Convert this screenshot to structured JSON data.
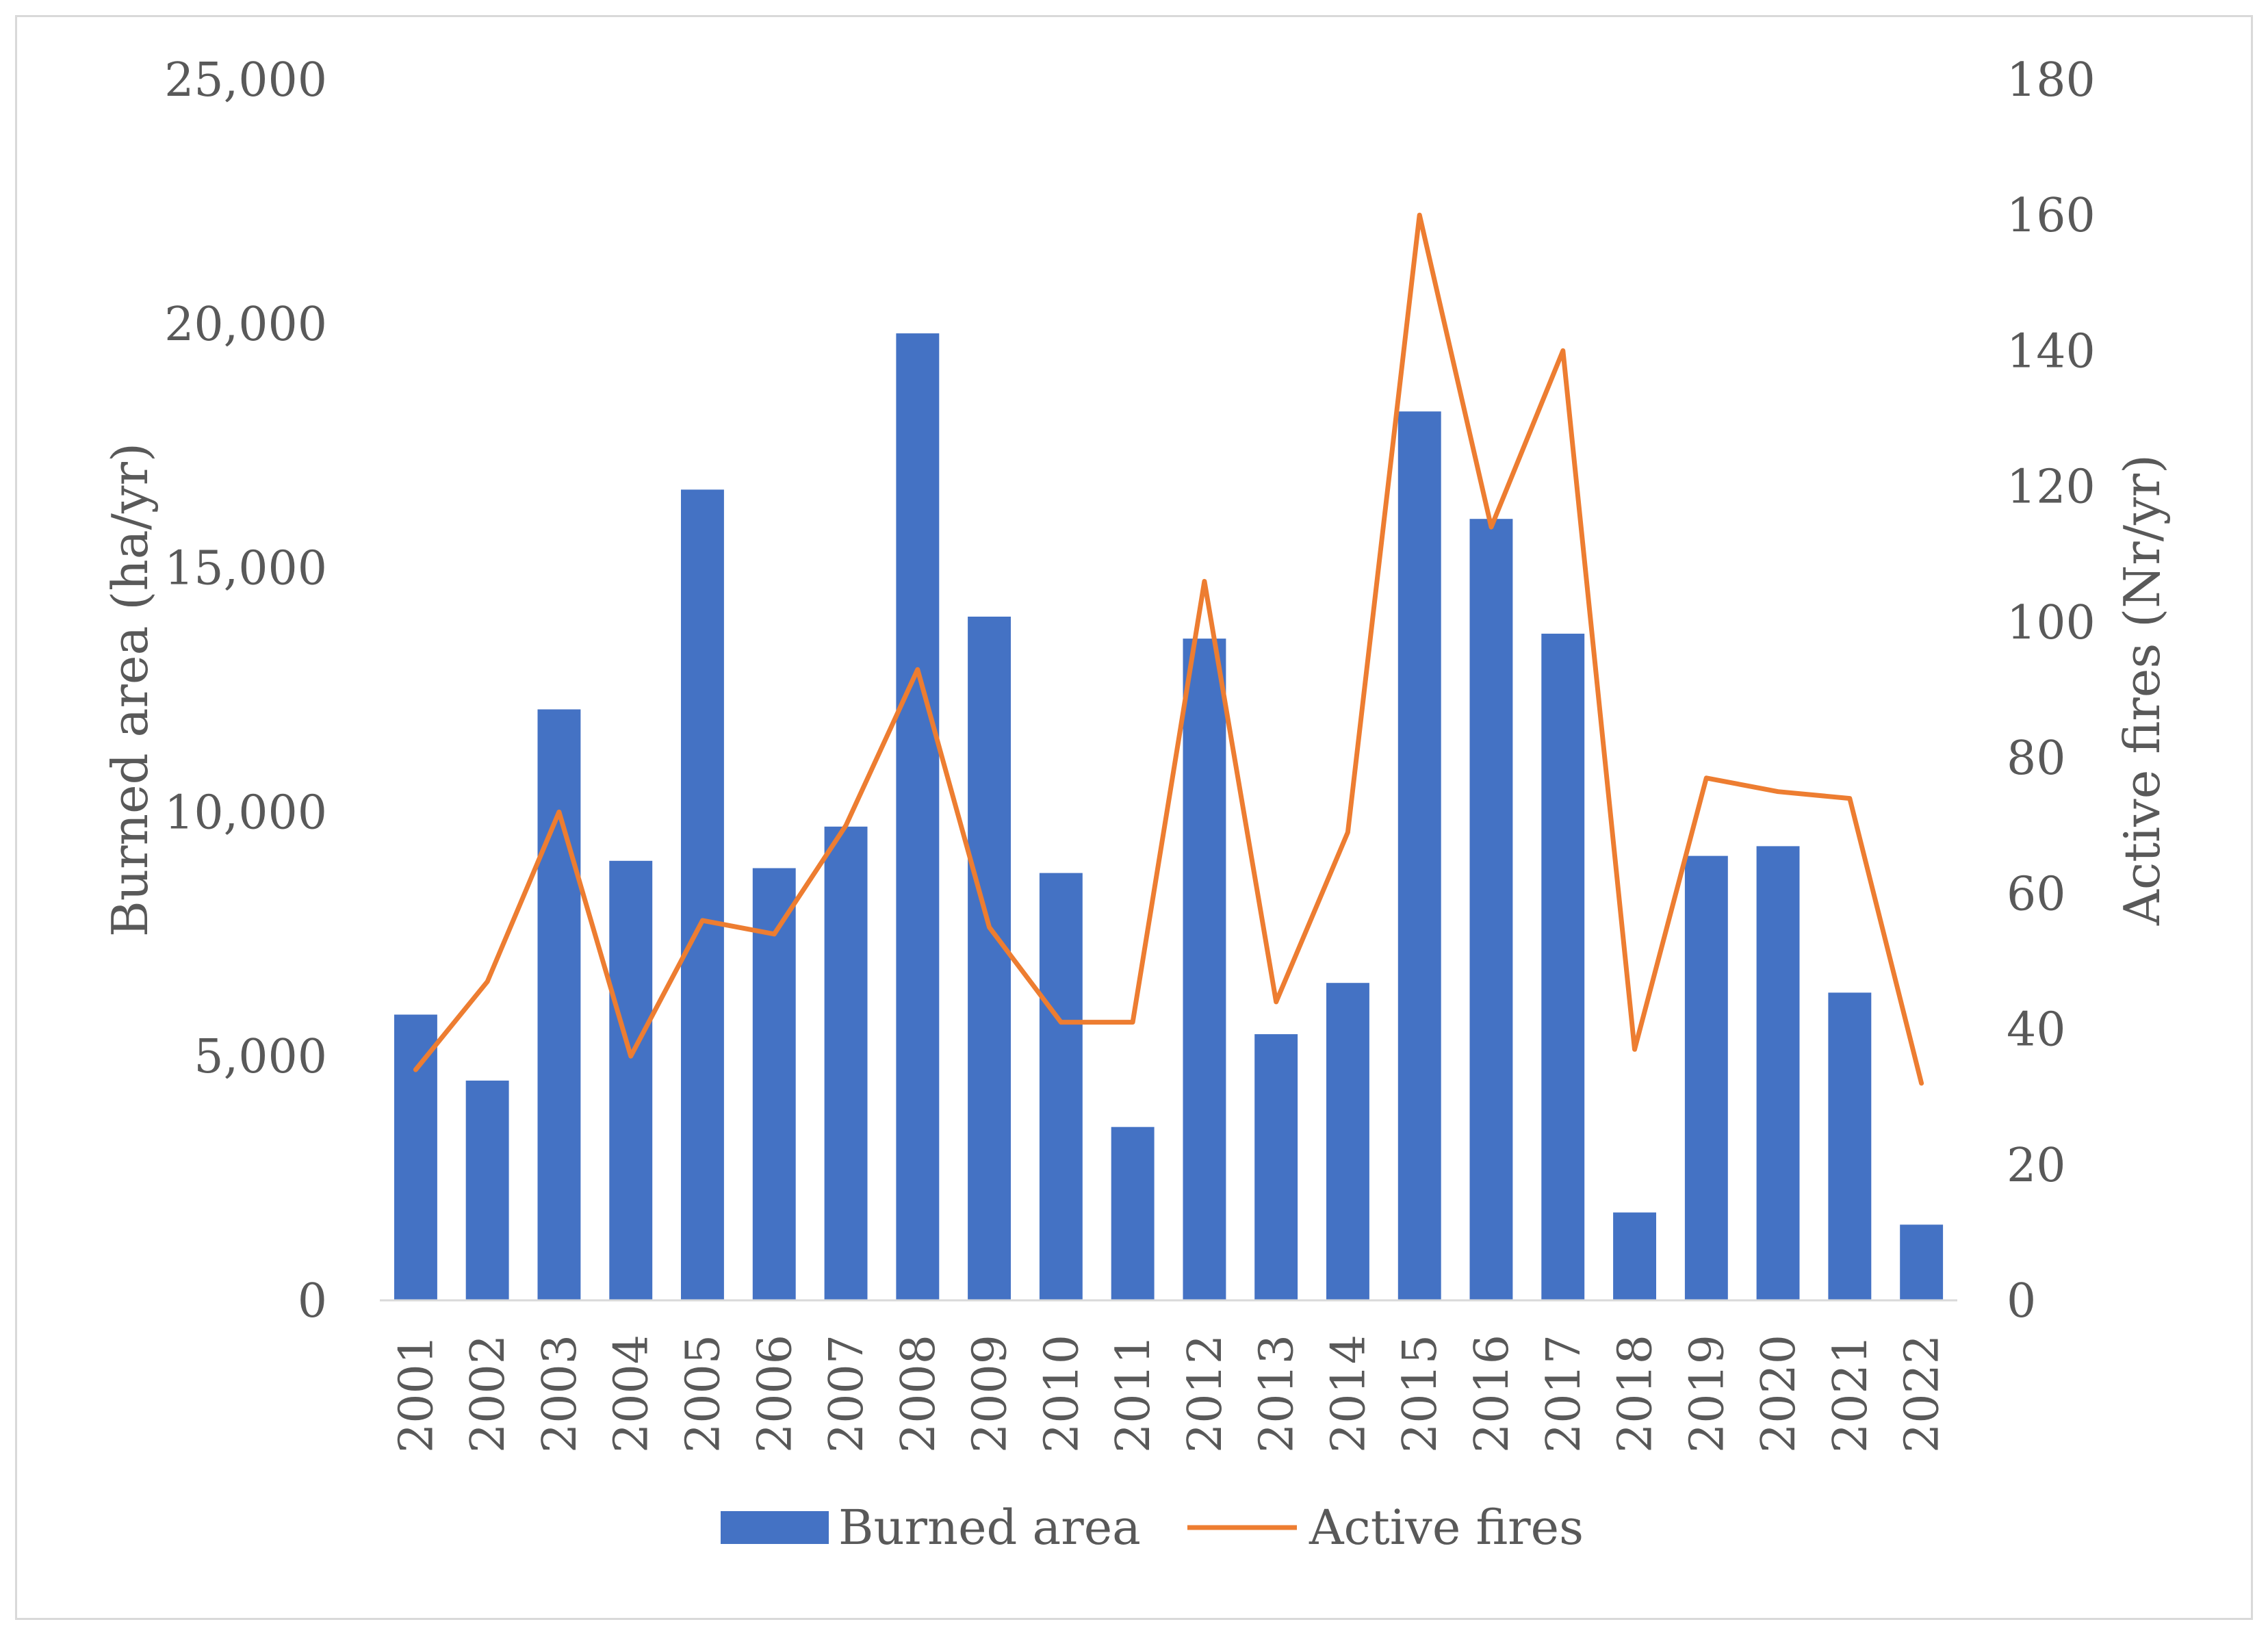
{
  "chart_data": {
    "type": "bar",
    "categories": [
      "2001",
      "2002",
      "2003",
      "2004",
      "2005",
      "2006",
      "2007",
      "2008",
      "2009",
      "2010",
      "2011",
      "2012",
      "2013",
      "2014",
      "2015",
      "2016",
      "2017",
      "2018",
      "2019",
      "2020",
      "2021",
      "2022"
    ],
    "series": [
      {
        "name": "Burned area",
        "type": "bar",
        "axis": "left",
        "color": "#4472c4",
        "values": [
          5850,
          4500,
          12100,
          9000,
          16600,
          8850,
          9700,
          19800,
          14000,
          8750,
          3550,
          13550,
          5450,
          6500,
          18200,
          16000,
          13650,
          1800,
          9100,
          9300,
          6300,
          1550
        ]
      },
      {
        "name": "Active fires",
        "type": "line",
        "axis": "right",
        "color": "#ed7d31",
        "values": [
          34,
          47,
          72,
          36,
          56,
          54,
          70,
          93,
          55,
          41,
          41,
          106,
          44,
          69,
          160,
          114,
          140,
          37,
          77,
          75,
          74,
          32
        ]
      }
    ],
    "ylabel_left": "Burned area (ha/yr)",
    "ylabel_right": "Active fires (Nr/yr)",
    "ylim_left": [
      0,
      25000
    ],
    "yticks_left": [
      "0",
      "5,000",
      "10,000",
      "15,000",
      "20,000",
      "25,000"
    ],
    "ylim_right": [
      0,
      180
    ],
    "yticks_right": [
      "0",
      "20",
      "40",
      "60",
      "80",
      "100",
      "120",
      "140",
      "160",
      "180"
    ],
    "grid": false,
    "legend_position": "bottom"
  }
}
